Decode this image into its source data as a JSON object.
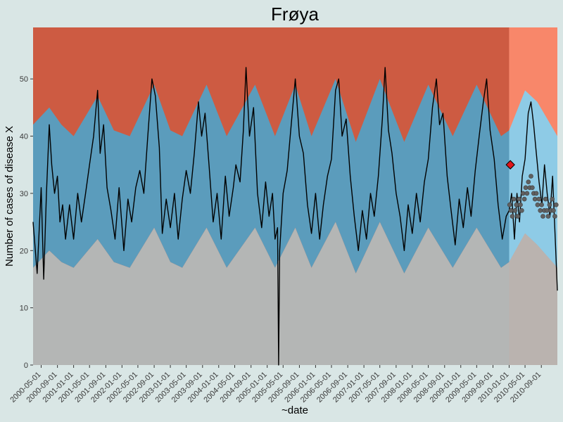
{
  "colors": {
    "background": "#d9e6e5",
    "upper_band": "#cd5b42",
    "upper_band_forecast": "#f8876a",
    "mid_band": "#5b9cbc",
    "mid_band_forecast": "#8ecbe6",
    "lower_band": "#b4b6b5",
    "observed_line": "#000000",
    "forecast_points": "#606060",
    "alert_marker": "#e0161b"
  },
  "chart_data": {
    "type": "area",
    "title": "Frøya",
    "xlabel": "~date",
    "ylabel": "Number of cases of disease X",
    "x_range": [
      "2000-03-01",
      "2010-12-31"
    ],
    "forecast_start": "2010-01-01",
    "ylim": [
      0,
      59
    ],
    "y_ticks": [
      0,
      10,
      20,
      30,
      40,
      50
    ],
    "x_ticks": [
      "2000-05-01",
      "2000-09-01",
      "2001-01-01",
      "2001-05-01",
      "2001-09-01",
      "2002-01-01",
      "2002-05-01",
      "2002-09-01",
      "2003-01-01",
      "2003-05-01",
      "2003-09-01",
      "2004-01-01",
      "2004-05-01",
      "2004-09-01",
      "2005-01-01",
      "2005-05-01",
      "2005-09-01",
      "2006-01-01",
      "2006-05-01",
      "2006-09-01",
      "2007-01-01",
      "2007-05-01",
      "2007-09-01",
      "2008-01-01",
      "2008-05-01",
      "2008-09-01",
      "2009-01-01",
      "2009-05-01",
      "2009-09-01",
      "2010-01-01",
      "2010-05-01",
      "2010-09-01"
    ],
    "bands": [
      {
        "date": "2000-03-01",
        "lower": 17,
        "upper": 42
      },
      {
        "date": "2000-07-01",
        "lower": 20,
        "upper": 45
      },
      {
        "date": "2000-10-01",
        "lower": 18,
        "upper": 42
      },
      {
        "date": "2001-01-01",
        "lower": 17,
        "upper": 40
      },
      {
        "date": "2001-07-01",
        "lower": 22,
        "upper": 47
      },
      {
        "date": "2001-11-01",
        "lower": 18,
        "upper": 41
      },
      {
        "date": "2002-03-01",
        "lower": 17,
        "upper": 40
      },
      {
        "date": "2002-09-01",
        "lower": 24,
        "upper": 49
      },
      {
        "date": "2003-01-01",
        "lower": 18,
        "upper": 41
      },
      {
        "date": "2003-04-01",
        "lower": 17,
        "upper": 40
      },
      {
        "date": "2003-10-01",
        "lower": 24,
        "upper": 49
      },
      {
        "date": "2004-03-01",
        "lower": 17,
        "upper": 40
      },
      {
        "date": "2004-10-01",
        "lower": 24,
        "upper": 49
      },
      {
        "date": "2005-03-01",
        "lower": 17,
        "upper": 40
      },
      {
        "date": "2005-08-01",
        "lower": 24,
        "upper": 49
      },
      {
        "date": "2005-12-01",
        "lower": 17,
        "upper": 40
      },
      {
        "date": "2006-06-01",
        "lower": 25,
        "upper": 50
      },
      {
        "date": "2006-11-01",
        "lower": 16,
        "upper": 39
      },
      {
        "date": "2007-05-01",
        "lower": 25,
        "upper": 50
      },
      {
        "date": "2007-11-01",
        "lower": 16,
        "upper": 39
      },
      {
        "date": "2008-05-01",
        "lower": 24,
        "upper": 49
      },
      {
        "date": "2008-11-01",
        "lower": 17,
        "upper": 40
      },
      {
        "date": "2009-05-01",
        "lower": 24,
        "upper": 49
      },
      {
        "date": "2009-11-01",
        "lower": 17,
        "upper": 40
      },
      {
        "date": "2010-01-01",
        "lower": 18,
        "upper": 41
      },
      {
        "date": "2010-05-01",
        "lower": 23,
        "upper": 48
      },
      {
        "date": "2010-08-01",
        "lower": 21,
        "upper": 46
      },
      {
        "date": "2010-12-31",
        "lower": 17,
        "upper": 40
      }
    ],
    "series": [
      {
        "values": [
          [
            "2000-03-01",
            25
          ],
          [
            "2000-04-01",
            16
          ],
          [
            "2000-05-01",
            31
          ],
          [
            "2000-05-20",
            15
          ],
          [
            "2000-06-10",
            30
          ],
          [
            "2000-07-01",
            42
          ],
          [
            "2000-07-20",
            35
          ],
          [
            "2000-08-10",
            30
          ],
          [
            "2000-09-01",
            33
          ],
          [
            "2000-09-20",
            25
          ],
          [
            "2000-10-10",
            28
          ],
          [
            "2000-11-01",
            22
          ],
          [
            "2000-12-01",
            28
          ],
          [
            "2001-01-01",
            22
          ],
          [
            "2001-02-01",
            30
          ],
          [
            "2001-03-01",
            25
          ],
          [
            "2001-04-01",
            30
          ],
          [
            "2001-05-01",
            35
          ],
          [
            "2001-06-01",
            40
          ],
          [
            "2001-07-01",
            48
          ],
          [
            "2001-07-20",
            37
          ],
          [
            "2001-08-15",
            42
          ],
          [
            "2001-09-10",
            31
          ],
          [
            "2001-10-10",
            27
          ],
          [
            "2001-11-10",
            22
          ],
          [
            "2001-12-10",
            31
          ],
          [
            "2002-01-15",
            20
          ],
          [
            "2002-02-15",
            29
          ],
          [
            "2002-03-15",
            25
          ],
          [
            "2002-04-15",
            31
          ],
          [
            "2002-05-15",
            34
          ],
          [
            "2002-06-15",
            30
          ],
          [
            "2002-07-15",
            40
          ],
          [
            "2002-08-15",
            50
          ],
          [
            "2002-09-10",
            47
          ],
          [
            "2002-10-10",
            38
          ],
          [
            "2002-11-01",
            23
          ],
          [
            "2002-12-01",
            29
          ],
          [
            "2003-01-01",
            24
          ],
          [
            "2003-02-01",
            30
          ],
          [
            "2003-03-01",
            22
          ],
          [
            "2003-04-01",
            29
          ],
          [
            "2003-05-01",
            34
          ],
          [
            "2003-06-01",
            30
          ],
          [
            "2003-07-01",
            37
          ],
          [
            "2003-08-01",
            46
          ],
          [
            "2003-08-25",
            40
          ],
          [
            "2003-09-20",
            44
          ],
          [
            "2003-10-20",
            35
          ],
          [
            "2003-11-20",
            25
          ],
          [
            "2003-12-20",
            30
          ],
          [
            "2004-01-20",
            22
          ],
          [
            "2004-02-20",
            33
          ],
          [
            "2004-03-20",
            26
          ],
          [
            "2004-04-20",
            31
          ],
          [
            "2004-05-10",
            35
          ],
          [
            "2004-06-10",
            32
          ],
          [
            "2004-07-05",
            41
          ],
          [
            "2004-07-25",
            52
          ],
          [
            "2004-08-20",
            40
          ],
          [
            "2004-09-20",
            45
          ],
          [
            "2004-10-20",
            30
          ],
          [
            "2004-11-20",
            24
          ],
          [
            "2004-12-20",
            32
          ],
          [
            "2005-01-15",
            26
          ],
          [
            "2005-02-10",
            30
          ],
          [
            "2005-03-01",
            22
          ],
          [
            "2005-03-20",
            24
          ],
          [
            "2005-03-28",
            0
          ],
          [
            "2005-04-05",
            20
          ],
          [
            "2005-05-01",
            30
          ],
          [
            "2005-06-01",
            34
          ],
          [
            "2005-07-01",
            42
          ],
          [
            "2005-08-01",
            50
          ],
          [
            "2005-09-01",
            40
          ],
          [
            "2005-10-01",
            37
          ],
          [
            "2005-11-01",
            28
          ],
          [
            "2005-12-01",
            23
          ],
          [
            "2006-01-01",
            30
          ],
          [
            "2006-02-01",
            22
          ],
          [
            "2006-03-01",
            28
          ],
          [
            "2006-04-01",
            33
          ],
          [
            "2006-05-01",
            36
          ],
          [
            "2006-06-01",
            48
          ],
          [
            "2006-06-25",
            50
          ],
          [
            "2006-07-20",
            40
          ],
          [
            "2006-08-20",
            43
          ],
          [
            "2006-09-20",
            33
          ],
          [
            "2006-10-20",
            26
          ],
          [
            "2006-11-20",
            20
          ],
          [
            "2006-12-20",
            27
          ],
          [
            "2007-01-20",
            22
          ],
          [
            "2007-02-20",
            30
          ],
          [
            "2007-03-20",
            26
          ],
          [
            "2007-04-20",
            33
          ],
          [
            "2007-05-20",
            43
          ],
          [
            "2007-06-10",
            52
          ],
          [
            "2007-07-05",
            41
          ],
          [
            "2007-08-01",
            37
          ],
          [
            "2007-09-01",
            30
          ],
          [
            "2007-10-01",
            26
          ],
          [
            "2007-11-01",
            20
          ],
          [
            "2007-12-01",
            28
          ],
          [
            "2008-01-01",
            23
          ],
          [
            "2008-02-01",
            30
          ],
          [
            "2008-03-01",
            25
          ],
          [
            "2008-04-01",
            32
          ],
          [
            "2008-05-01",
            36
          ],
          [
            "2008-06-01",
            45
          ],
          [
            "2008-07-01",
            50
          ],
          [
            "2008-07-25",
            42
          ],
          [
            "2008-08-20",
            44
          ],
          [
            "2008-09-20",
            33
          ],
          [
            "2008-10-20",
            27
          ],
          [
            "2008-11-20",
            21
          ],
          [
            "2008-12-20",
            29
          ],
          [
            "2009-01-20",
            24
          ],
          [
            "2009-02-20",
            31
          ],
          [
            "2009-03-20",
            26
          ],
          [
            "2009-04-20",
            34
          ],
          [
            "2009-05-20",
            40
          ],
          [
            "2009-06-20",
            46
          ],
          [
            "2009-07-15",
            50
          ],
          [
            "2009-08-10",
            41
          ],
          [
            "2009-09-10",
            36
          ],
          [
            "2009-10-10",
            28
          ],
          [
            "2009-11-10",
            22
          ],
          [
            "2009-12-10",
            26
          ],
          [
            "2010-01-01",
            27
          ],
          [
            "2010-01-20",
            30
          ],
          [
            "2010-02-10",
            22
          ],
          [
            "2010-03-01",
            30
          ],
          [
            "2010-03-20",
            25
          ],
          [
            "2010-04-10",
            33
          ],
          [
            "2010-05-01",
            36
          ],
          [
            "2010-05-25",
            44
          ],
          [
            "2010-06-15",
            46
          ],
          [
            "2010-07-05",
            42
          ],
          [
            "2010-07-25",
            37
          ],
          [
            "2010-08-15",
            32
          ],
          [
            "2010-09-05",
            28
          ],
          [
            "2010-09-25",
            35
          ],
          [
            "2010-10-15",
            30
          ],
          [
            "2010-11-05",
            26
          ],
          [
            "2010-11-25",
            33
          ],
          [
            "2010-12-15",
            22
          ],
          [
            "2010-12-31",
            13
          ]
        ]
      }
    ],
    "forecast_points": [
      [
        "2010-01-05",
        28
      ],
      [
        "2010-01-15",
        27
      ],
      [
        "2010-01-25",
        26
      ],
      [
        "2010-02-05",
        29
      ],
      [
        "2010-02-15",
        27
      ],
      [
        "2010-02-25",
        28
      ],
      [
        "2010-03-07",
        26
      ],
      [
        "2010-03-17",
        29
      ],
      [
        "2010-03-27",
        28
      ],
      [
        "2010-04-06",
        27
      ],
      [
        "2010-04-16",
        30
      ],
      [
        "2010-04-26",
        29
      ],
      [
        "2010-05-06",
        31
      ],
      [
        "2010-05-16",
        30
      ],
      [
        "2010-05-26",
        32
      ],
      [
        "2010-06-05",
        31
      ],
      [
        "2010-06-15",
        33
      ],
      [
        "2010-06-25",
        31
      ],
      [
        "2010-07-05",
        30
      ],
      [
        "2010-07-15",
        29
      ],
      [
        "2010-07-25",
        30
      ],
      [
        "2010-08-04",
        28
      ],
      [
        "2010-08-14",
        29
      ],
      [
        "2010-08-24",
        27
      ],
      [
        "2010-09-03",
        28
      ],
      [
        "2010-09-13",
        26
      ],
      [
        "2010-09-23",
        27
      ],
      [
        "2010-10-03",
        29
      ],
      [
        "2010-10-13",
        27
      ],
      [
        "2010-10-23",
        26
      ],
      [
        "2010-11-02",
        28
      ],
      [
        "2010-11-12",
        27
      ],
      [
        "2010-11-22",
        29
      ],
      [
        "2010-12-02",
        27
      ],
      [
        "2010-12-12",
        26
      ],
      [
        "2010-12-22",
        28
      ]
    ],
    "alert_point": [
      "2010-01-10",
      35
    ]
  }
}
